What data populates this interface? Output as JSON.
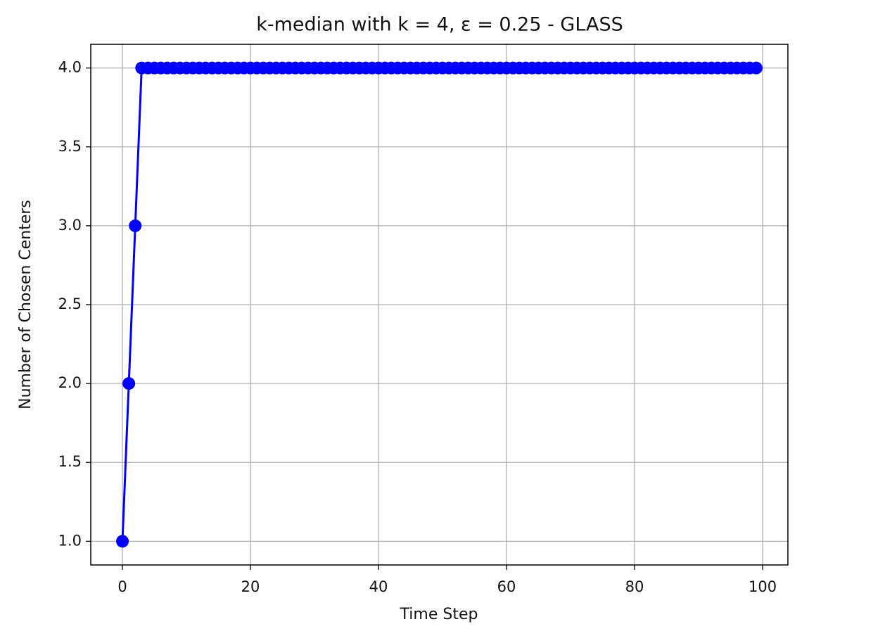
{
  "chart_data": {
    "type": "line",
    "title": "k-median with k = 4, ε = 0.25 - GLASS",
    "x_label": "Time Step",
    "y_label": "Number of Chosen Centers",
    "x": [
      0,
      1,
      2,
      3,
      4,
      5,
      6,
      7,
      8,
      9,
      10,
      11,
      12,
      13,
      14,
      15,
      16,
      17,
      18,
      19,
      20,
      21,
      22,
      23,
      24,
      25,
      26,
      27,
      28,
      29,
      30,
      31,
      32,
      33,
      34,
      35,
      36,
      37,
      38,
      39,
      40,
      41,
      42,
      43,
      44,
      45,
      46,
      47,
      48,
      49,
      50,
      51,
      52,
      53,
      54,
      55,
      56,
      57,
      58,
      59,
      60,
      61,
      62,
      63,
      64,
      65,
      66,
      67,
      68,
      69,
      70,
      71,
      72,
      73,
      74,
      75,
      76,
      77,
      78,
      79,
      80,
      81,
      82,
      83,
      84,
      85,
      86,
      87,
      88,
      89,
      90,
      91,
      92,
      93,
      94,
      95,
      96,
      97,
      98,
      99
    ],
    "values": [
      1,
      2,
      3,
      4,
      4,
      4,
      4,
      4,
      4,
      4,
      4,
      4,
      4,
      4,
      4,
      4,
      4,
      4,
      4,
      4,
      4,
      4,
      4,
      4,
      4,
      4,
      4,
      4,
      4,
      4,
      4,
      4,
      4,
      4,
      4,
      4,
      4,
      4,
      4,
      4,
      4,
      4,
      4,
      4,
      4,
      4,
      4,
      4,
      4,
      4,
      4,
      4,
      4,
      4,
      4,
      4,
      4,
      4,
      4,
      4,
      4,
      4,
      4,
      4,
      4,
      4,
      4,
      4,
      4,
      4,
      4,
      4,
      4,
      4,
      4,
      4,
      4,
      4,
      4,
      4,
      4,
      4,
      4,
      4,
      4,
      4,
      4,
      4,
      4,
      4,
      4,
      4,
      4,
      4,
      4,
      4,
      4,
      4,
      4,
      4
    ],
    "color": "#0000ff",
    "marker": "o",
    "grid": true,
    "xlim": [
      -4.95,
      103.95
    ],
    "ylim": [
      0.85,
      4.15
    ],
    "xticks": [
      0,
      20,
      40,
      60,
      80,
      100
    ],
    "yticks": [
      {
        "value": 1,
        "label": "1.0"
      },
      1.5,
      {
        "value": 2,
        "label": "2.0"
      },
      2.5,
      {
        "value": 3,
        "label": "3.0"
      },
      3.5,
      {
        "value": 4,
        "label": "4.0"
      }
    ]
  }
}
